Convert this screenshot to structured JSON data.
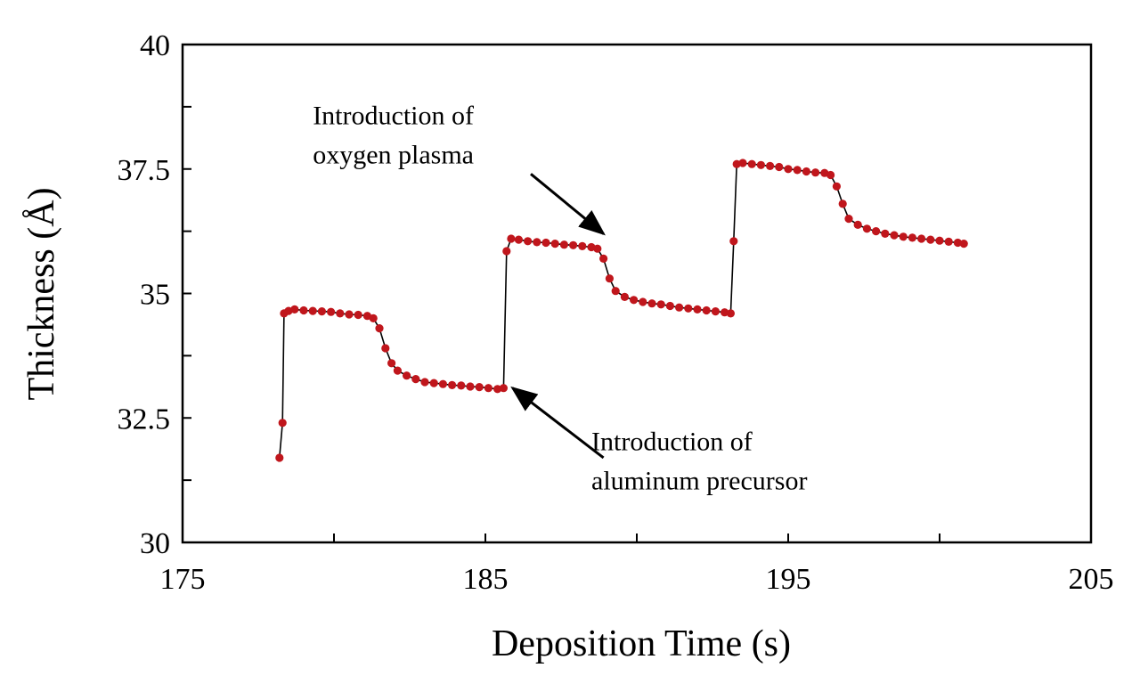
{
  "chart_data": {
    "type": "scatter",
    "xlabel": "Deposition Time (s)",
    "ylabel": "Thickness (Å)",
    "xlim": [
      175,
      205
    ],
    "ylim": [
      30,
      40
    ],
    "x_ticks": [
      175,
      185,
      195,
      205
    ],
    "x_tick_labels": [
      "175",
      "185",
      "195",
      "205"
    ],
    "y_ticks": [
      30,
      32.5,
      35,
      37.5,
      40
    ],
    "y_tick_labels": [
      "30",
      "32.5",
      "35",
      "37.5",
      "40"
    ],
    "grid": false,
    "colors": {
      "marker": "#c0161c",
      "line": "#000000"
    },
    "series": [
      {
        "points": [
          [
            178.2,
            31.7
          ],
          [
            178.3,
            32.4
          ],
          [
            178.35,
            34.6
          ],
          [
            178.5,
            34.65
          ],
          [
            178.7,
            34.68
          ],
          [
            179.0,
            34.66
          ],
          [
            179.3,
            34.65
          ],
          [
            179.6,
            34.64
          ],
          [
            179.9,
            34.63
          ],
          [
            180.2,
            34.6
          ],
          [
            180.5,
            34.58
          ],
          [
            180.8,
            34.57
          ],
          [
            181.1,
            34.55
          ],
          [
            181.3,
            34.5
          ],
          [
            181.5,
            34.3
          ],
          [
            181.7,
            33.9
          ],
          [
            181.9,
            33.6
          ],
          [
            182.1,
            33.45
          ],
          [
            182.4,
            33.35
          ],
          [
            182.7,
            33.28
          ],
          [
            183.0,
            33.22
          ],
          [
            183.3,
            33.2
          ],
          [
            183.6,
            33.18
          ],
          [
            183.9,
            33.16
          ],
          [
            184.2,
            33.15
          ],
          [
            184.5,
            33.13
          ],
          [
            184.8,
            33.12
          ],
          [
            185.1,
            33.1
          ],
          [
            185.4,
            33.08
          ],
          [
            185.6,
            33.1
          ],
          [
            185.7,
            35.85
          ],
          [
            185.85,
            36.1
          ],
          [
            186.1,
            36.08
          ],
          [
            186.4,
            36.05
          ],
          [
            186.7,
            36.03
          ],
          [
            187.0,
            36.02
          ],
          [
            187.3,
            36.0
          ],
          [
            187.6,
            35.98
          ],
          [
            187.9,
            35.97
          ],
          [
            188.2,
            35.95
          ],
          [
            188.5,
            35.93
          ],
          [
            188.7,
            35.9
          ],
          [
            188.9,
            35.7
          ],
          [
            189.1,
            35.3
          ],
          [
            189.3,
            35.05
          ],
          [
            189.6,
            34.93
          ],
          [
            189.9,
            34.87
          ],
          [
            190.2,
            34.83
          ],
          [
            190.5,
            34.8
          ],
          [
            190.8,
            34.78
          ],
          [
            191.1,
            34.75
          ],
          [
            191.4,
            34.72
          ],
          [
            191.7,
            34.7
          ],
          [
            192.0,
            34.68
          ],
          [
            192.3,
            34.66
          ],
          [
            192.6,
            34.64
          ],
          [
            192.9,
            34.62
          ],
          [
            193.1,
            34.6
          ],
          [
            193.2,
            36.05
          ],
          [
            193.3,
            37.6
          ],
          [
            193.5,
            37.62
          ],
          [
            193.8,
            37.6
          ],
          [
            194.1,
            37.58
          ],
          [
            194.4,
            37.56
          ],
          [
            194.7,
            37.54
          ],
          [
            195.0,
            37.5
          ],
          [
            195.3,
            37.48
          ],
          [
            195.6,
            37.45
          ],
          [
            195.9,
            37.43
          ],
          [
            196.2,
            37.42
          ],
          [
            196.4,
            37.38
          ],
          [
            196.6,
            37.15
          ],
          [
            196.8,
            36.8
          ],
          [
            197.0,
            36.5
          ],
          [
            197.3,
            36.38
          ],
          [
            197.6,
            36.3
          ],
          [
            197.9,
            36.25
          ],
          [
            198.2,
            36.2
          ],
          [
            198.5,
            36.17
          ],
          [
            198.8,
            36.14
          ],
          [
            199.1,
            36.12
          ],
          [
            199.4,
            36.1
          ],
          [
            199.7,
            36.08
          ],
          [
            200.0,
            36.06
          ],
          [
            200.3,
            36.04
          ],
          [
            200.6,
            36.02
          ],
          [
            200.8,
            36.0
          ]
        ]
      }
    ],
    "annotations": [
      {
        "lines": [
          "Introduction of",
          "oxygen plasma"
        ],
        "arrow_to": [
          188.9,
          36.2
        ],
        "arrow_from": [
          186.5,
          37.4
        ],
        "text_at": [
          179.3,
          38.4
        ]
      },
      {
        "lines": [
          "Introduction of",
          "aluminum precursor"
        ],
        "arrow_to": [
          185.9,
          33.1
        ],
        "arrow_from": [
          188.9,
          31.7
        ],
        "text_at": [
          188.5,
          31.85
        ]
      }
    ]
  }
}
